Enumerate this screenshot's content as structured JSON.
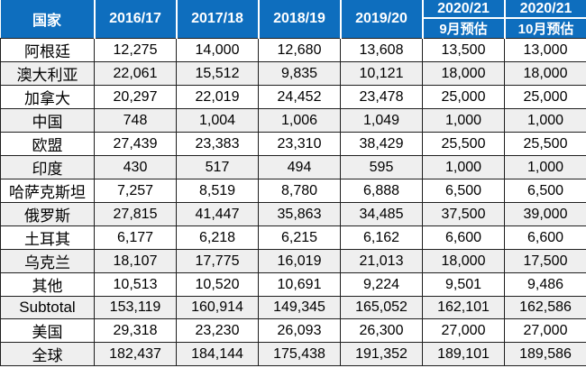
{
  "table": {
    "header": {
      "country": "国家",
      "years": [
        "2016/17",
        "2017/18",
        "2018/19",
        "2019/20"
      ],
      "forecast_year": "2020/21",
      "forecast_subheaders": [
        "9月预估",
        "10月预估"
      ]
    },
    "rows": [
      {
        "country": "阿根廷",
        "values": [
          "12,275",
          "14,000",
          "12,680",
          "13,608",
          "13,500",
          "13,000"
        ]
      },
      {
        "country": "澳大利亚",
        "values": [
          "22,061",
          "15,512",
          "9,835",
          "10,121",
          "18,000",
          "18,000"
        ]
      },
      {
        "country": "加拿大",
        "values": [
          "20,297",
          "22,019",
          "24,452",
          "23,478",
          "25,000",
          "25,000"
        ]
      },
      {
        "country": "中国",
        "values": [
          "748",
          "1,004",
          "1,006",
          "1,049",
          "1,000",
          "1,000"
        ]
      },
      {
        "country": "欧盟",
        "values": [
          "27,439",
          "23,383",
          "23,310",
          "38,429",
          "25,500",
          "25,500"
        ]
      },
      {
        "country": "印度",
        "values": [
          "430",
          "517",
          "494",
          "595",
          "1,000",
          "1,000"
        ]
      },
      {
        "country": "哈萨克斯坦",
        "values": [
          "7,257",
          "8,519",
          "8,780",
          "6,888",
          "6,500",
          "6,500"
        ]
      },
      {
        "country": "俄罗斯",
        "values": [
          "27,815",
          "41,447",
          "35,863",
          "34,485",
          "37,500",
          "39,000"
        ]
      },
      {
        "country": "土耳其",
        "values": [
          "6,177",
          "6,218",
          "6,215",
          "6,162",
          "6,600",
          "6,600"
        ]
      },
      {
        "country": "乌克兰",
        "values": [
          "18,107",
          "17,775",
          "16,019",
          "21,013",
          "18,000",
          "17,500"
        ]
      },
      {
        "country": "其他",
        "values": [
          "10,513",
          "10,520",
          "10,691",
          "9,224",
          "9,501",
          "9,486"
        ]
      },
      {
        "country": "Subtotal",
        "latin": true,
        "values": [
          "153,119",
          "160,914",
          "149,345",
          "165,052",
          "162,101",
          "162,586"
        ]
      },
      {
        "country": "美国",
        "values": [
          "29,318",
          "23,230",
          "26,093",
          "26,300",
          "27,000",
          "27,000"
        ]
      },
      {
        "country": "全球",
        "values": [
          "182,437",
          "184,144",
          "175,438",
          "191,352",
          "189,101",
          "189,586"
        ]
      }
    ]
  },
  "colors": {
    "header_bg": "#0e6ebe",
    "header_text": "#ffffff",
    "grid_line": "#1f1f1f",
    "stripe_row_bg": "#efefef",
    "body_text": "#000000"
  },
  "chart_data": {
    "type": "table",
    "columns": [
      "国家",
      "2016/17",
      "2017/18",
      "2018/19",
      "2019/20",
      "2020/21 9月预估",
      "2020/21 10月预估"
    ],
    "rows": [
      [
        "阿根廷",
        12275,
        14000,
        12680,
        13608,
        13500,
        13000
      ],
      [
        "澳大利亚",
        22061,
        15512,
        9835,
        10121,
        18000,
        18000
      ],
      [
        "加拿大",
        20297,
        22019,
        24452,
        23478,
        25000,
        25000
      ],
      [
        "中国",
        748,
        1004,
        1006,
        1049,
        1000,
        1000
      ],
      [
        "欧盟",
        27439,
        23383,
        23310,
        38429,
        25500,
        25500
      ],
      [
        "印度",
        430,
        517,
        494,
        595,
        1000,
        1000
      ],
      [
        "哈萨克斯坦",
        7257,
        8519,
        8780,
        6888,
        6500,
        6500
      ],
      [
        "俄罗斯",
        27815,
        41447,
        35863,
        34485,
        37500,
        39000
      ],
      [
        "土耳其",
        6177,
        6218,
        6215,
        6162,
        6600,
        6600
      ],
      [
        "乌克兰",
        18107,
        17775,
        16019,
        21013,
        18000,
        17500
      ],
      [
        "其他",
        10513,
        10520,
        10691,
        9224,
        9501,
        9486
      ],
      [
        "Subtotal",
        153119,
        160914,
        149345,
        165052,
        162101,
        162586
      ],
      [
        "美国",
        29318,
        23230,
        26093,
        26300,
        27000,
        27000
      ],
      [
        "全球",
        182437,
        184144,
        175438,
        191352,
        189101,
        189586
      ]
    ]
  }
}
